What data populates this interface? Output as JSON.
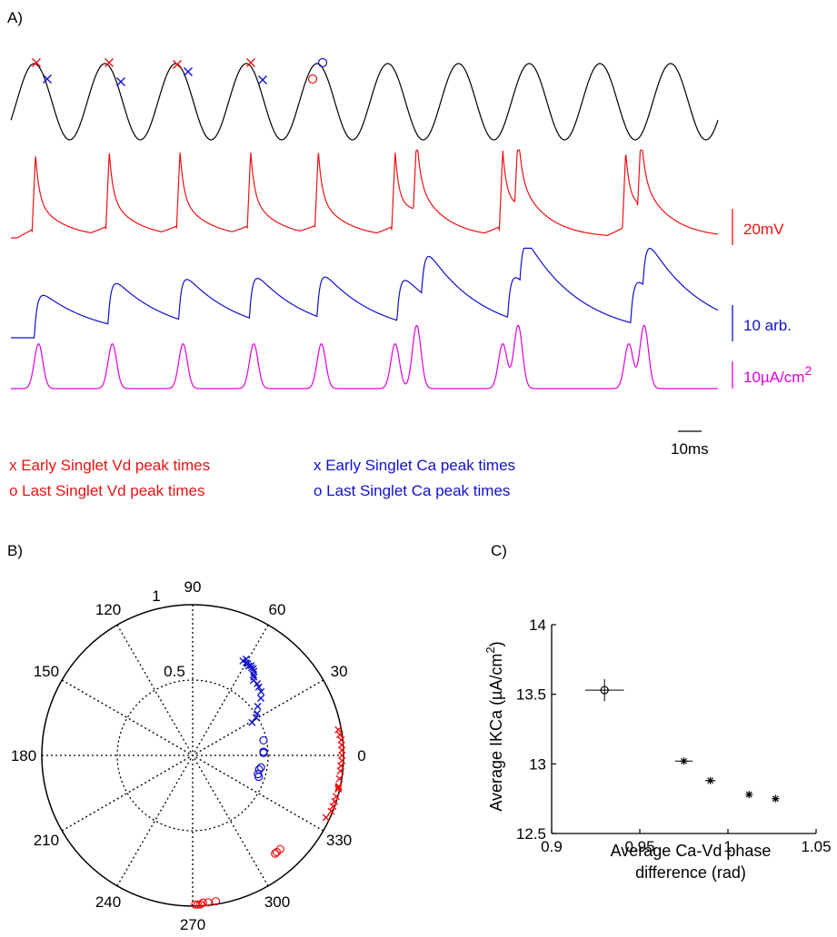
{
  "panels": {
    "a_label": "A)",
    "b_label": "B)",
    "c_label": "C)"
  },
  "colors": {
    "carrier": "#000000",
    "vd": "#ee1111",
    "ca": "#1111cc",
    "ikca": "#e000e0",
    "grid": "#000000"
  },
  "panel_a": {
    "scale_bars": {
      "vd_label": "20mV",
      "ca_label": "10 arb.",
      "ikca_label": "10µA/cm",
      "ikca_sup": "2",
      "time_label": "10ms"
    },
    "legend": {
      "early_vd": "x Early Singlet Vd peak times",
      "last_vd": "o Last Singlet Vd peak times",
      "early_ca": "x Early Singlet Ca peak times",
      "last_ca": "o Last Singlet Ca peak times"
    }
  },
  "chart_data": [
    {
      "type": "line",
      "panel": "A",
      "title": "",
      "traces": [
        {
          "name": "",
          "color_key": "carrier",
          "description_free": true,
          "cycles": 10
        },
        {
          "name": "",
          "color_key": "vd",
          "spike_times_ms": [
            4,
            16,
            27.5,
            39,
            50,
            62.5,
            66,
            80,
            82.5,
            100,
            102.5
          ]
        },
        {
          "name": "",
          "color_key": "ca",
          "peak_times_ms": [
            5,
            17,
            28.5,
            40,
            51,
            64,
            68,
            82,
            84,
            102,
            104
          ]
        },
        {
          "name": "",
          "color_key": "ikca",
          "peak_times_ms": [
            4.5,
            16.5,
            28,
            39.5,
            50.5,
            62.5,
            66,
            80,
            82.5,
            100.5,
            103
          ]
        }
      ],
      "markers": {
        "early_vd_x": [
          0.5,
          11.8,
          23,
          34.3
        ],
        "early_ca_x": [
          1.3,
          13,
          24.5,
          35.5
        ],
        "last_vd_o": [
          41
        ],
        "last_ca_o": [
          42.2
        ]
      }
    },
    {
      "type": "scatter",
      "panel": "B",
      "polar": true,
      "title": "",
      "radial_ticks": [
        "0.5",
        "1"
      ],
      "angle_ticks": [
        "0",
        "30",
        "60",
        "90",
        "120",
        "150",
        "180",
        "210",
        "240",
        "270",
        "300",
        "330"
      ],
      "rlim": [
        0,
        1
      ],
      "series": [
        {
          "name": "",
          "marker": "x",
          "color_key": "vd",
          "points_deg_r": [
            [
              10,
              0.98
            ],
            [
              8,
              0.985
            ],
            [
              6,
              0.99
            ],
            [
              4,
              0.99
            ],
            [
              2,
              0.99
            ],
            [
              0,
              0.99
            ],
            [
              -2,
              0.99
            ],
            [
              -4,
              0.985
            ],
            [
              -6,
              0.985
            ],
            [
              -9,
              0.985
            ],
            [
              -12,
              0.99
            ],
            [
              -12.5,
              0.99
            ],
            [
              -13,
              0.99
            ],
            [
              -16,
              0.99
            ],
            [
              -18,
              0.99
            ],
            [
              -20,
              0.99
            ],
            [
              -22,
              0.99
            ],
            [
              -25,
              0.975
            ]
          ]
        },
        {
          "name": "",
          "marker": "o",
          "color_key": "vd",
          "points_deg_r": [
            [
              -47,
              0.85
            ],
            [
              -49,
              0.85
            ],
            [
              -50,
              0.85
            ],
            [
              -81,
              0.98
            ],
            [
              -84,
              0.98
            ],
            [
              -86,
              0.98
            ],
            [
              -87,
              0.99
            ],
            [
              -88,
              0.99
            ],
            [
              -89,
              0.99
            ]
          ]
        },
        {
          "name": "",
          "marker": "x",
          "color_key": "ca",
          "points_deg_r": [
            [
              29,
              0.45
            ],
            [
              31,
              0.49
            ],
            [
              33,
              0.51
            ],
            [
              37,
              0.54
            ],
            [
              40,
              0.59
            ],
            [
              43,
              0.62
            ],
            [
              46,
              0.63
            ],
            [
              48,
              0.64
            ],
            [
              51,
              0.64
            ],
            [
              52,
              0.66
            ],
            [
              53,
              0.67
            ],
            [
              54,
              0.69
            ],
            [
              55,
              0.7
            ],
            [
              56,
              0.7
            ],
            [
              57,
              0.71
            ],
            [
              58,
              0.7
            ],
            [
              59,
              0.71
            ],
            [
              60,
              0.71
            ],
            [
              61,
              0.73
            ],
            [
              62,
              0.71
            ]
          ]
        },
        {
          "name": "",
          "marker": "o",
          "color_key": "ca",
          "points_deg_r": [
            [
              12,
              0.48
            ],
            [
              3,
              0.47
            ],
            [
              2,
              0.47
            ],
            [
              -10,
              0.46
            ],
            [
              -12,
              0.45
            ],
            [
              -16,
              0.45
            ],
            [
              -18,
              0.46
            ]
          ]
        }
      ]
    },
    {
      "type": "scatter",
      "panel": "C",
      "title": "",
      "xlabel": "Average Ca-Vd phase difference (rad)",
      "ylabel": "Average IKCa (µA/cm²)",
      "xlim": [
        0.9,
        1.05
      ],
      "ylim": [
        12.5,
        14
      ],
      "x_ticks": [
        "0.9",
        "0.95",
        "1",
        "1.05"
      ],
      "y_ticks": [
        "12.5",
        "13",
        "13.5",
        "14"
      ],
      "series": [
        {
          "name": "",
          "marker": "o",
          "points": [
            [
              0.93,
              13.53
            ]
          ],
          "x_err": [
            0.011
          ],
          "y_err": [
            0.08
          ]
        },
        {
          "name": "",
          "marker": "*",
          "points": [
            [
              0.975,
              13.02
            ],
            [
              0.99,
              12.88
            ],
            [
              1.012,
              12.78
            ],
            [
              1.027,
              12.75
            ]
          ],
          "x_err": [
            0.005,
            0.003,
            0.002,
            0.002
          ],
          "y_err": [
            0.01,
            0.01,
            0.01,
            0.01
          ]
        }
      ]
    }
  ],
  "panel_b_labels": {
    "r_half": "0.5",
    "r_one": "1"
  },
  "panel_c_labels": {
    "xlabel_line1": "Average Ca-Vd phase",
    "xlabel_line2": "difference (rad)",
    "ylabel": "Average IKCa (µA/cm",
    "ylabel_sup": "2",
    "ylabel_end": ")"
  }
}
